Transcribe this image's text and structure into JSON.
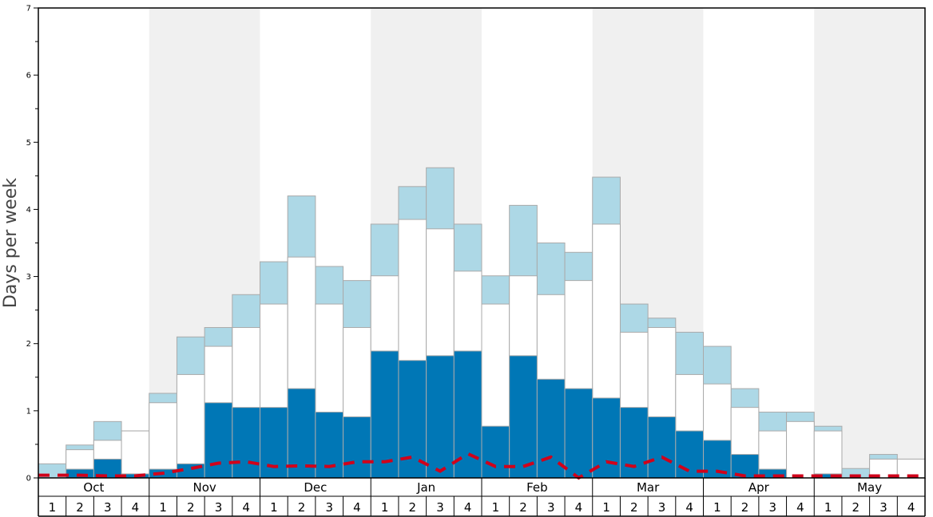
{
  "chart_data": {
    "type": "bar",
    "ylabel": "Days per week",
    "ylim": [
      0,
      7
    ],
    "yticks": [
      "0",
      "1",
      "2",
      "3",
      "4",
      "5",
      "6",
      "7"
    ],
    "months": [
      "Oct",
      "Nov",
      "Dec",
      "Jan",
      "Feb",
      "Mar",
      "Apr",
      "May"
    ],
    "week_labels": [
      "1",
      "2",
      "3",
      "4"
    ],
    "colors": {
      "dark": "#0077b6",
      "white": "#ffffff",
      "light": "#add8e6",
      "dash": "#d0021b",
      "band": "#f0f0f0",
      "bar_edge": "#aaaaaa"
    },
    "series": [
      {
        "values": [
          0.0,
          0.13,
          0.28,
          0.06,
          0.13,
          0.21,
          1.12,
          1.05,
          1.05,
          1.33,
          0.98,
          0.91,
          1.89,
          1.75,
          1.82,
          1.89,
          0.77,
          1.82,
          1.47,
          1.33,
          1.19,
          1.05,
          0.91,
          0.7,
          0.56,
          0.35,
          0.13,
          0.0,
          0.06,
          0.0,
          0.0,
          0.0
        ]
      },
      {
        "values": [
          0.0,
          0.42,
          0.56,
          0.7,
          1.12,
          1.54,
          1.96,
          2.24,
          2.59,
          3.29,
          2.59,
          2.24,
          3.01,
          3.85,
          3.71,
          3.08,
          2.59,
          3.01,
          2.73,
          2.94,
          3.78,
          2.17,
          2.24,
          1.54,
          1.4,
          1.05,
          0.7,
          0.84,
          0.7,
          0.0,
          0.28,
          0.28
        ]
      },
      {
        "values": [
          0.21,
          0.49,
          0.84,
          0.7,
          1.26,
          2.1,
          2.24,
          2.73,
          3.22,
          4.2,
          3.15,
          2.94,
          3.78,
          4.34,
          4.62,
          3.78,
          3.01,
          4.06,
          3.5,
          3.36,
          4.48,
          2.59,
          2.38,
          2.17,
          1.96,
          1.33,
          0.98,
          0.98,
          0.77,
          0.14,
          0.35,
          0.28
        ]
      },
      {
        "values": [
          0.04,
          0.04,
          0.03,
          0.03,
          0.07,
          0.14,
          0.22,
          0.24,
          0.17,
          0.18,
          0.17,
          0.24,
          0.24,
          0.31,
          0.1,
          0.36,
          0.17,
          0.17,
          0.31,
          0.0,
          0.24,
          0.17,
          0.31,
          0.1,
          0.1,
          0.03,
          0.03,
          0.03,
          0.03,
          0.03,
          0.03,
          0.03
        ]
      }
    ]
  }
}
